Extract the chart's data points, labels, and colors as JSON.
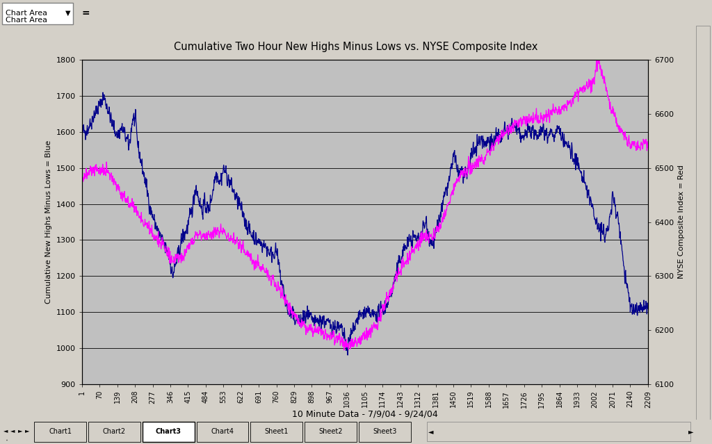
{
  "title": "Cumulative Two Hour New Highs Minus Lows vs. NYSE Composite Index",
  "xlabel": "10 Minute Data - 7/9/04 - 9/24/04",
  "ylabel_left": "Cumulative New Highs Minus Lows = Blue",
  "ylabel_right": "NYSE Composite Index = Red",
  "blue_color": "#00008B",
  "magenta_color": "#FF00FF",
  "outer_bg_color": "#D4D0C8",
  "plot_bg_color": "#C0C0C0",
  "ylim_left": [
    900,
    1800
  ],
  "ylim_right": [
    6100,
    6700
  ],
  "xlim": [
    1,
    2209
  ],
  "xtick_labels": [
    "1",
    "70",
    "139",
    "208",
    "277",
    "346",
    "415",
    "484",
    "553",
    "622",
    "691",
    "760",
    "829",
    "898",
    "967",
    "1036",
    "1105",
    "1174",
    "1243",
    "1312",
    "1381",
    "1450",
    "1519",
    "1588",
    "1657",
    "1726",
    "1795",
    "1864",
    "1933",
    "2002",
    "2071",
    "2140",
    "2209"
  ],
  "yticks_left": [
    900,
    1000,
    1100,
    1200,
    1300,
    1400,
    1500,
    1600,
    1700,
    1800
  ],
  "yticks_right": [
    6100,
    6200,
    6300,
    6400,
    6500,
    6600,
    6700
  ],
  "tab_labels": [
    "Chart1",
    "Chart2",
    "Chart3",
    "Chart4",
    "Sheet1",
    "Sheet2",
    "Sheet3"
  ],
  "active_tab": "Chart3",
  "blue_keypoints": [
    [
      1,
      1600
    ],
    [
      25,
      1610
    ],
    [
      50,
      1650
    ],
    [
      75,
      1680
    ],
    [
      85,
      1700
    ],
    [
      100,
      1670
    ],
    [
      120,
      1620
    ],
    [
      140,
      1590
    ],
    [
      155,
      1610
    ],
    [
      170,
      1590
    ],
    [
      185,
      1560
    ],
    [
      200,
      1640
    ],
    [
      210,
      1630
    ],
    [
      220,
      1560
    ],
    [
      240,
      1490
    ],
    [
      255,
      1440
    ],
    [
      270,
      1380
    ],
    [
      285,
      1350
    ],
    [
      300,
      1320
    ],
    [
      320,
      1290
    ],
    [
      340,
      1260
    ],
    [
      355,
      1200
    ],
    [
      370,
      1240
    ],
    [
      390,
      1300
    ],
    [
      410,
      1330
    ],
    [
      430,
      1380
    ],
    [
      445,
      1450
    ],
    [
      455,
      1420
    ],
    [
      470,
      1380
    ],
    [
      480,
      1400
    ],
    [
      495,
      1380
    ],
    [
      510,
      1430
    ],
    [
      525,
      1490
    ],
    [
      540,
      1460
    ],
    [
      555,
      1500
    ],
    [
      570,
      1470
    ],
    [
      585,
      1450
    ],
    [
      600,
      1420
    ],
    [
      615,
      1400
    ],
    [
      630,
      1370
    ],
    [
      645,
      1340
    ],
    [
      660,
      1320
    ],
    [
      680,
      1300
    ],
    [
      700,
      1290
    ],
    [
      720,
      1280
    ],
    [
      740,
      1260
    ],
    [
      760,
      1270
    ],
    [
      775,
      1200
    ],
    [
      790,
      1150
    ],
    [
      805,
      1100
    ],
    [
      820,
      1090
    ],
    [
      835,
      1080
    ],
    [
      850,
      1070
    ],
    [
      865,
      1080
    ],
    [
      880,
      1090
    ],
    [
      895,
      1080
    ],
    [
      910,
      1070
    ],
    [
      925,
      1075
    ],
    [
      940,
      1080
    ],
    [
      955,
      1070
    ],
    [
      970,
      1065
    ],
    [
      985,
      1060
    ],
    [
      1000,
      1055
    ],
    [
      1015,
      1050
    ],
    [
      1028,
      1020
    ],
    [
      1036,
      995
    ],
    [
      1045,
      1020
    ],
    [
      1060,
      1060
    ],
    [
      1075,
      1080
    ],
    [
      1090,
      1090
    ],
    [
      1105,
      1100
    ],
    [
      1120,
      1095
    ],
    [
      1135,
      1090
    ],
    [
      1150,
      1095
    ],
    [
      1165,
      1100
    ],
    [
      1180,
      1110
    ],
    [
      1195,
      1130
    ],
    [
      1210,
      1160
    ],
    [
      1225,
      1200
    ],
    [
      1240,
      1240
    ],
    [
      1255,
      1270
    ],
    [
      1270,
      1290
    ],
    [
      1285,
      1300
    ],
    [
      1300,
      1310
    ],
    [
      1310,
      1300
    ],
    [
      1320,
      1310
    ],
    [
      1330,
      1330
    ],
    [
      1345,
      1350
    ],
    [
      1355,
      1310
    ],
    [
      1365,
      1290
    ],
    [
      1375,
      1300
    ],
    [
      1390,
      1340
    ],
    [
      1405,
      1390
    ],
    [
      1420,
      1430
    ],
    [
      1435,
      1470
    ],
    [
      1450,
      1530
    ],
    [
      1460,
      1520
    ],
    [
      1470,
      1480
    ],
    [
      1480,
      1500
    ],
    [
      1490,
      1480
    ],
    [
      1500,
      1470
    ],
    [
      1515,
      1520
    ],
    [
      1530,
      1550
    ],
    [
      1545,
      1570
    ],
    [
      1560,
      1580
    ],
    [
      1575,
      1570
    ],
    [
      1590,
      1580
    ],
    [
      1605,
      1570
    ],
    [
      1620,
      1590
    ],
    [
      1635,
      1580
    ],
    [
      1650,
      1600
    ],
    [
      1665,
      1600
    ],
    [
      1680,
      1620
    ],
    [
      1695,
      1610
    ],
    [
      1710,
      1590
    ],
    [
      1725,
      1580
    ],
    [
      1740,
      1610
    ],
    [
      1755,
      1600
    ],
    [
      1770,
      1590
    ],
    [
      1785,
      1600
    ],
    [
      1800,
      1610
    ],
    [
      1815,
      1590
    ],
    [
      1830,
      1600
    ],
    [
      1845,
      1590
    ],
    [
      1860,
      1610
    ],
    [
      1875,
      1580
    ],
    [
      1890,
      1570
    ],
    [
      1905,
      1550
    ],
    [
      1920,
      1530
    ],
    [
      1935,
      1510
    ],
    [
      1950,
      1480
    ],
    [
      1965,
      1450
    ],
    [
      1980,
      1420
    ],
    [
      1995,
      1380
    ],
    [
      2010,
      1350
    ],
    [
      2025,
      1330
    ],
    [
      2040,
      1310
    ],
    [
      2055,
      1340
    ],
    [
      2065,
      1380
    ],
    [
      2071,
      1420
    ],
    [
      2080,
      1400
    ],
    [
      2090,
      1370
    ],
    [
      2100,
      1320
    ],
    [
      2110,
      1260
    ],
    [
      2120,
      1200
    ],
    [
      2130,
      1160
    ],
    [
      2140,
      1120
    ],
    [
      2150,
      1110
    ],
    [
      2165,
      1105
    ],
    [
      2180,
      1110
    ],
    [
      2195,
      1115
    ],
    [
      2209,
      1110
    ]
  ],
  "magenta_keypoints": [
    [
      1,
      6475
    ],
    [
      20,
      6490
    ],
    [
      40,
      6495
    ],
    [
      60,
      6500
    ],
    [
      80,
      6495
    ],
    [
      100,
      6490
    ],
    [
      120,
      6480
    ],
    [
      140,
      6465
    ],
    [
      160,
      6450
    ],
    [
      180,
      6440
    ],
    [
      200,
      6430
    ],
    [
      220,
      6415
    ],
    [
      240,
      6400
    ],
    [
      260,
      6390
    ],
    [
      280,
      6375
    ],
    [
      300,
      6365
    ],
    [
      320,
      6355
    ],
    [
      340,
      6340
    ],
    [
      355,
      6330
    ],
    [
      370,
      6330
    ],
    [
      385,
      6335
    ],
    [
      400,
      6340
    ],
    [
      415,
      6350
    ],
    [
      430,
      6360
    ],
    [
      445,
      6375
    ],
    [
      460,
      6380
    ],
    [
      475,
      6375
    ],
    [
      490,
      6370
    ],
    [
      510,
      6375
    ],
    [
      530,
      6380
    ],
    [
      550,
      6385
    ],
    [
      570,
      6375
    ],
    [
      590,
      6370
    ],
    [
      610,
      6360
    ],
    [
      630,
      6350
    ],
    [
      650,
      6340
    ],
    [
      670,
      6330
    ],
    [
      690,
      6320
    ],
    [
      710,
      6310
    ],
    [
      730,
      6300
    ],
    [
      750,
      6290
    ],
    [
      770,
      6275
    ],
    [
      790,
      6260
    ],
    [
      810,
      6245
    ],
    [
      830,
      6230
    ],
    [
      850,
      6215
    ],
    [
      870,
      6205
    ],
    [
      890,
      6200
    ],
    [
      910,
      6200
    ],
    [
      930,
      6200
    ],
    [
      950,
      6195
    ],
    [
      970,
      6190
    ],
    [
      990,
      6185
    ],
    [
      1010,
      6180
    ],
    [
      1025,
      6175
    ],
    [
      1036,
      6170
    ],
    [
      1050,
      6172
    ],
    [
      1065,
      6175
    ],
    [
      1080,
      6180
    ],
    [
      1095,
      6185
    ],
    [
      1110,
      6190
    ],
    [
      1125,
      6195
    ],
    [
      1140,
      6205
    ],
    [
      1155,
      6215
    ],
    [
      1170,
      6230
    ],
    [
      1185,
      6250
    ],
    [
      1200,
      6265
    ],
    [
      1215,
      6280
    ],
    [
      1230,
      6300
    ],
    [
      1245,
      6315
    ],
    [
      1260,
      6325
    ],
    [
      1275,
      6335
    ],
    [
      1290,
      6345
    ],
    [
      1305,
      6355
    ],
    [
      1320,
      6365
    ],
    [
      1335,
      6370
    ],
    [
      1350,
      6375
    ],
    [
      1360,
      6370
    ],
    [
      1375,
      6375
    ],
    [
      1390,
      6385
    ],
    [
      1405,
      6400
    ],
    [
      1420,
      6420
    ],
    [
      1435,
      6440
    ],
    [
      1450,
      6460
    ],
    [
      1465,
      6475
    ],
    [
      1480,
      6485
    ],
    [
      1495,
      6490
    ],
    [
      1510,
      6500
    ],
    [
      1525,
      6505
    ],
    [
      1540,
      6510
    ],
    [
      1555,
      6515
    ],
    [
      1570,
      6520
    ],
    [
      1585,
      6530
    ],
    [
      1600,
      6540
    ],
    [
      1615,
      6550
    ],
    [
      1630,
      6555
    ],
    [
      1645,
      6565
    ],
    [
      1660,
      6570
    ],
    [
      1675,
      6575
    ],
    [
      1690,
      6580
    ],
    [
      1705,
      6585
    ],
    [
      1720,
      6585
    ],
    [
      1735,
      6590
    ],
    [
      1750,
      6588
    ],
    [
      1765,
      6590
    ],
    [
      1780,
      6592
    ],
    [
      1795,
      6595
    ],
    [
      1810,
      6598
    ],
    [
      1825,
      6600
    ],
    [
      1840,
      6605
    ],
    [
      1855,
      6605
    ],
    [
      1870,
      6610
    ],
    [
      1885,
      6612
    ],
    [
      1900,
      6618
    ],
    [
      1915,
      6625
    ],
    [
      1930,
      6635
    ],
    [
      1945,
      6645
    ],
    [
      1960,
      6650
    ],
    [
      1975,
      6652
    ],
    [
      1990,
      6660
    ],
    [
      2000,
      6670
    ],
    [
      2008,
      6690
    ],
    [
      2015,
      6700
    ],
    [
      2025,
      6685
    ],
    [
      2035,
      6668
    ],
    [
      2045,
      6648
    ],
    [
      2055,
      6628
    ],
    [
      2065,
      6615
    ],
    [
      2071,
      6605
    ],
    [
      2085,
      6590
    ],
    [
      2100,
      6575
    ],
    [
      2115,
      6560
    ],
    [
      2130,
      6550
    ],
    [
      2145,
      6545
    ],
    [
      2160,
      6542
    ],
    [
      2175,
      6540
    ],
    [
      2190,
      6545
    ],
    [
      2200,
      6548
    ],
    [
      2209,
      6545
    ]
  ]
}
